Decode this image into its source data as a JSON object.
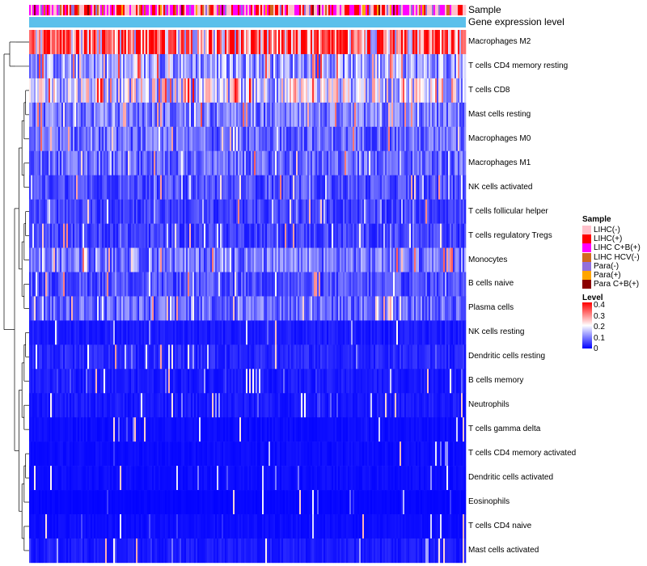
{
  "chart_data": {
    "type": "heatmap",
    "title": "",
    "annotation_tracks": [
      "Sample",
      "Gene expression level"
    ],
    "rows": [
      {
        "label": "Macrophages M2",
        "mean": 0.27
      },
      {
        "label": "T cells CD4 memory resting",
        "mean": 0.12
      },
      {
        "label": "T cells CD8",
        "mean": 0.17
      },
      {
        "label": "Mast cells resting",
        "mean": 0.09
      },
      {
        "label": "Macrophages M0",
        "mean": 0.08
      },
      {
        "label": "Macrophages M1",
        "mean": 0.08
      },
      {
        "label": "NK cells activated",
        "mean": 0.06
      },
      {
        "label": "T cells follicular helper",
        "mean": 0.05
      },
      {
        "label": "T cells regulatory  Tregs",
        "mean": 0.05
      },
      {
        "label": "Monocytes",
        "mean": 0.09
      },
      {
        "label": "B cells naive",
        "mean": 0.06
      },
      {
        "label": "Plasma cells",
        "mean": 0.08
      },
      {
        "label": "NK cells resting",
        "mean": 0.02
      },
      {
        "label": "Dendritic cells resting",
        "mean": 0.03
      },
      {
        "label": "B cells memory",
        "mean": 0.02
      },
      {
        "label": "Neutrophils",
        "mean": 0.02
      },
      {
        "label": "T cells gamma delta",
        "mean": 0.01
      },
      {
        "label": "T cells CD4 memory activated",
        "mean": 0.01
      },
      {
        "label": "Dendritic cells activated",
        "mean": 0.01
      },
      {
        "label": "Eosinophils",
        "mean": 0.005
      },
      {
        "label": "T cells CD4 naive",
        "mean": 0.01
      },
      {
        "label": "Mast cells activated",
        "mean": 0.02
      }
    ],
    "color_scale": {
      "title": "Level",
      "range": [
        0,
        0.4
      ],
      "ticks": [
        "0.4",
        "0.3",
        "0.2",
        "0.1",
        "0"
      ],
      "colors": {
        "low": "#0000ff",
        "mid": "#ffffff",
        "high": "#ff0000"
      }
    },
    "sample_legend": {
      "title": "Sample",
      "items": [
        {
          "label": "LIHC(-)",
          "color": "#ffc0cb"
        },
        {
          "label": "LIHC(+)",
          "color": "#ff0000"
        },
        {
          "label": "LIHC C+B(+)",
          "color": "#ff00ff"
        },
        {
          "label": "LIHC HCV(-)",
          "color": "#d2691e"
        },
        {
          "label": "Para(-)",
          "color": "#9370db"
        },
        {
          "label": "Para(+)",
          "color": "#ffa500"
        },
        {
          "label": "Para C+B(+)",
          "color": "#8b0000"
        }
      ]
    },
    "gene_expression_track_color": "#5bc0eb"
  }
}
